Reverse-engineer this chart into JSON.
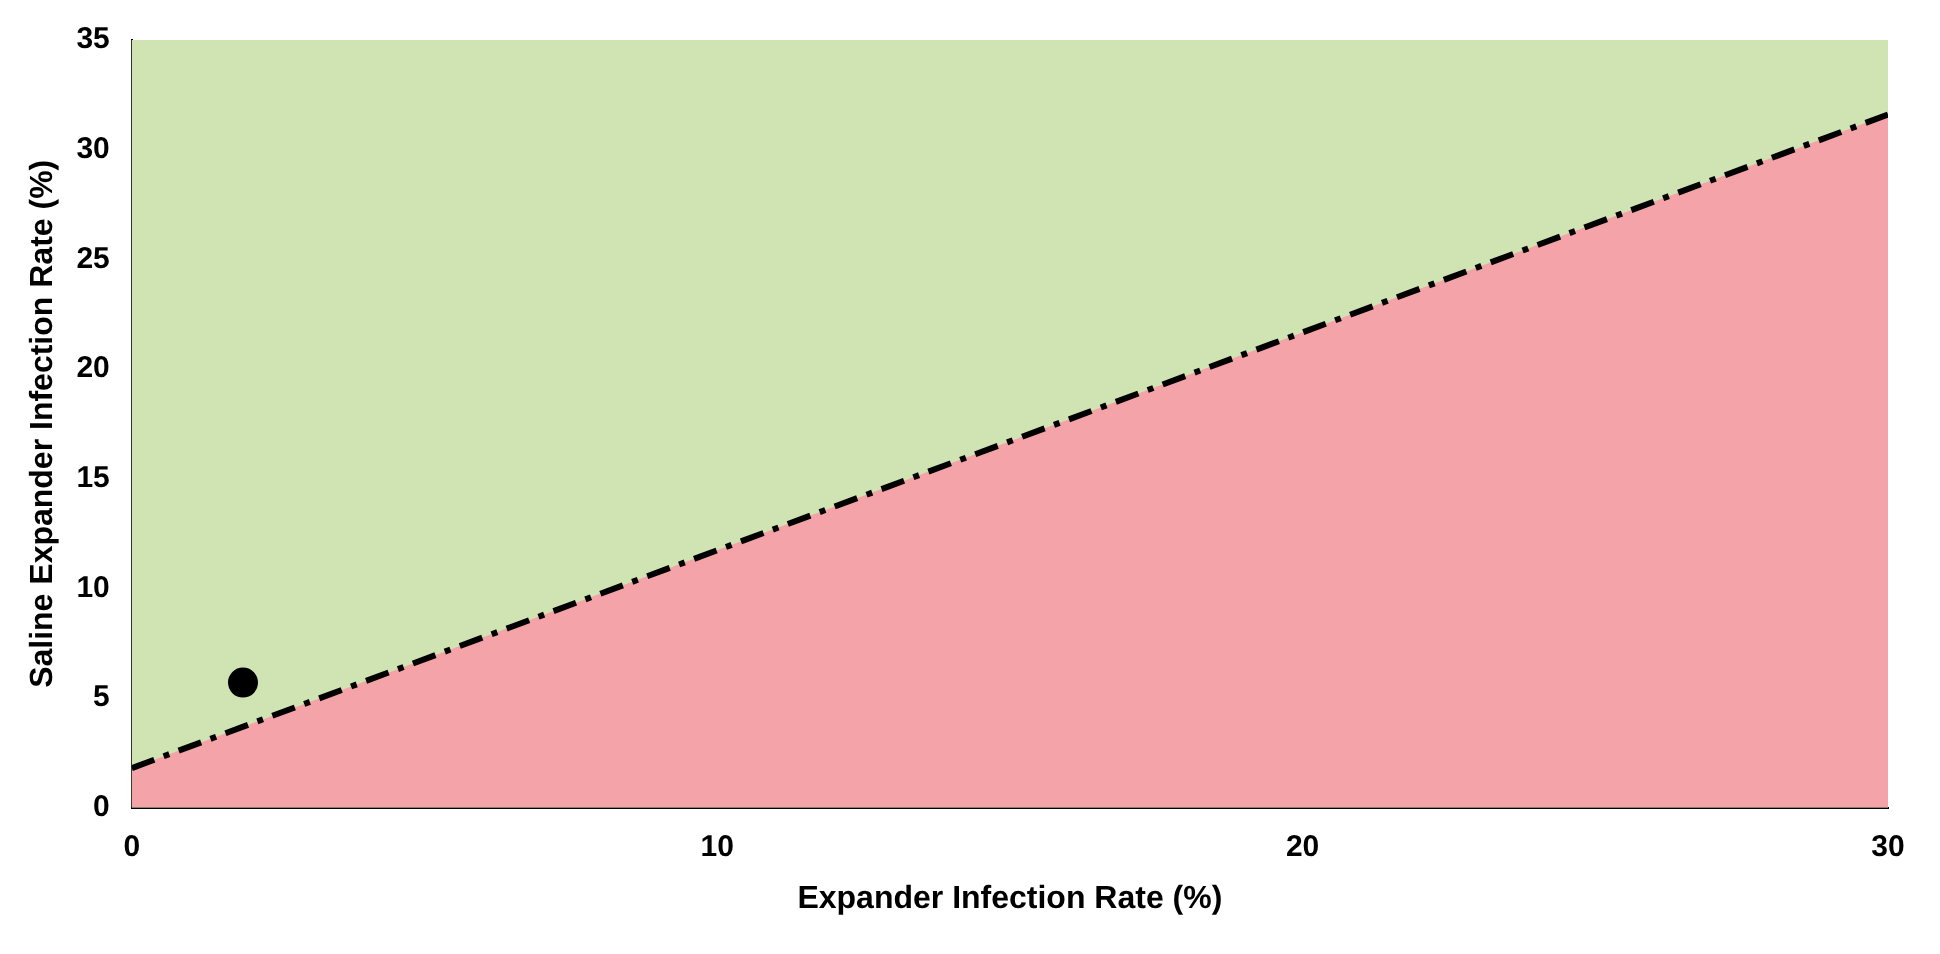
{
  "chart_data": {
    "type": "scatter",
    "xlabel": "Expander Infection Rate (%)",
    "ylabel": "Saline Expander Infection Rate (%)",
    "xlim": [
      0,
      30
    ],
    "xticks": [
      0,
      10,
      20,
      30
    ],
    "ylim": [
      0,
      35
    ],
    "yticks": [
      0,
      5,
      10,
      15,
      20,
      25,
      30,
      35
    ],
    "grid": false,
    "legend": false,
    "series": [
      {
        "type": "area",
        "color": "#f4a3a8",
        "line_style": "dashed",
        "marker": "none",
        "x": [
          0,
          30
        ],
        "values": [
          1.8,
          31.6
        ]
      },
      {
        "color": "#000000",
        "marker": "circle",
        "x": [
          1.9
        ],
        "values": [
          5.7
        ]
      }
    ]
  }
}
